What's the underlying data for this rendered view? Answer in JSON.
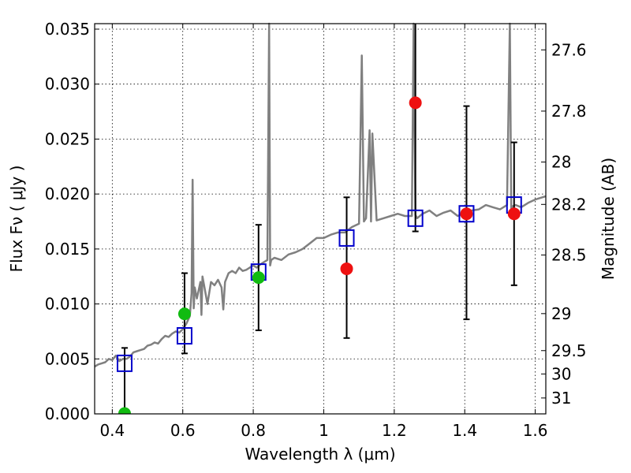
{
  "chart_data": {
    "type": "scatter",
    "title": "",
    "xlabel": "Wavelength  λ (μm)",
    "ylabel": "Flux  Fν  ( μJy )",
    "y2label": "Magnitude (AB)",
    "xlim": [
      0.35,
      1.63
    ],
    "ylim": [
      0.0,
      0.0355
    ],
    "grid": true,
    "x_ticks": [
      0.4,
      0.6,
      0.8,
      1.0,
      1.2,
      1.4,
      1.6
    ],
    "x_tick_labels": [
      "0.4",
      "0.6",
      "0.8",
      "1",
      "1.2",
      "1.4",
      "1.6"
    ],
    "y_ticks": [
      0.0,
      0.005,
      0.01,
      0.015,
      0.02,
      0.025,
      0.03,
      0.035
    ],
    "y_tick_labels": [
      "0.000",
      "0.005",
      "0.010",
      "0.015",
      "0.020",
      "0.025",
      "0.030",
      "0.035"
    ],
    "y2_ticks": [
      27.6,
      27.8,
      28.0,
      28.2,
      28.5,
      29.0,
      29.5,
      30.0,
      31.0
    ],
    "y2_tick_labels": [
      "27.6",
      "27.8",
      "28",
      "28.2",
      "28.5",
      "29",
      "29.5",
      "30",
      "31"
    ],
    "colors": {
      "template": "#808080",
      "model": "#0000cc",
      "obs_red": "#ee1111",
      "obs_green": "#11bb11",
      "errorbar": "#000000"
    },
    "series": [
      {
        "kind": "line",
        "x": [
          0.35,
          0.36,
          0.37,
          0.38,
          0.39,
          0.4,
          0.41,
          0.42,
          0.43,
          0.44,
          0.45,
          0.46,
          0.47,
          0.48,
          0.49,
          0.5,
          0.51,
          0.52,
          0.53,
          0.54,
          0.55,
          0.56,
          0.57,
          0.58,
          0.59,
          0.6,
          0.61,
          0.62,
          0.625,
          0.628,
          0.631,
          0.634,
          0.64,
          0.65,
          0.653,
          0.656,
          0.66,
          0.67,
          0.68,
          0.69,
          0.7,
          0.71,
          0.715,
          0.72,
          0.73,
          0.74,
          0.75,
          0.76,
          0.77,
          0.78,
          0.79,
          0.8,
          0.81,
          0.82,
          0.83,
          0.84,
          0.845,
          0.848,
          0.851,
          0.86,
          0.88,
          0.9,
          0.92,
          0.94,
          0.96,
          0.98,
          1.0,
          1.02,
          1.04,
          1.06,
          1.08,
          1.1,
          1.108,
          1.114,
          1.12,
          1.13,
          1.134,
          1.138,
          1.15,
          1.17,
          1.19,
          1.21,
          1.23,
          1.25,
          1.255,
          1.26,
          1.265,
          1.28,
          1.3,
          1.32,
          1.34,
          1.36,
          1.38,
          1.4,
          1.42,
          1.44,
          1.46,
          1.48,
          1.5,
          1.52,
          1.528,
          1.532,
          1.536,
          1.545,
          1.56,
          1.58,
          1.6,
          1.63
        ],
        "y": [
          0.0043,
          0.0045,
          0.0046,
          0.0047,
          0.005,
          0.0049,
          0.0053,
          0.0048,
          0.005,
          0.005,
          0.0052,
          0.0056,
          0.0057,
          0.0058,
          0.0059,
          0.0062,
          0.0063,
          0.0065,
          0.0064,
          0.0068,
          0.0071,
          0.007,
          0.0073,
          0.0075,
          0.0074,
          0.0077,
          0.0082,
          0.0089,
          0.011,
          0.0213,
          0.0096,
          0.0115,
          0.0105,
          0.012,
          0.009,
          0.0125,
          0.0118,
          0.01,
          0.012,
          0.0117,
          0.0122,
          0.0115,
          0.0095,
          0.012,
          0.0128,
          0.013,
          0.0128,
          0.0133,
          0.013,
          0.0131,
          0.0133,
          0.0135,
          0.0133,
          0.0136,
          0.0138,
          0.014,
          0.0355,
          0.0135,
          0.014,
          0.0142,
          0.014,
          0.0145,
          0.0147,
          0.015,
          0.0155,
          0.016,
          0.016,
          0.0163,
          0.0165,
          0.0165,
          0.017,
          0.0173,
          0.0326,
          0.0175,
          0.0178,
          0.0258,
          0.0175,
          0.0255,
          0.0176,
          0.0178,
          0.018,
          0.0182,
          0.018,
          0.018,
          0.0355,
          0.0181,
          0.0178,
          0.0182,
          0.0185,
          0.018,
          0.0183,
          0.0185,
          0.018,
          0.0183,
          0.0185,
          0.0186,
          0.019,
          0.0188,
          0.0186,
          0.019,
          0.0355,
          0.0185,
          0.0189,
          0.019,
          0.0188,
          0.0192,
          0.0195,
          0.0198
        ]
      },
      {
        "kind": "model_squares",
        "x": [
          0.435,
          0.605,
          0.815,
          1.065,
          1.26,
          1.405,
          1.54
        ],
        "y": [
          0.0046,
          0.0071,
          0.0129,
          0.016,
          0.0178,
          0.0182,
          0.019
        ]
      },
      {
        "kind": "observed",
        "x": [
          0.435,
          0.605,
          0.815,
          1.065,
          1.26,
          1.405,
          1.54
        ],
        "y": [
          0.0,
          0.0091,
          0.0124,
          0.0132,
          0.0283,
          0.0182,
          0.0182
        ],
        "yerr_low": [
          0.0,
          0.0055,
          0.0076,
          0.0069,
          0.0166,
          0.0086,
          0.0117
        ],
        "yerr_high": [
          0.006,
          0.0128,
          0.0172,
          0.0197,
          0.0355,
          0.028,
          0.0247
        ],
        "marker_colors": [
          "green",
          "green",
          "green",
          "red",
          "red",
          "red",
          "red"
        ]
      }
    ]
  }
}
